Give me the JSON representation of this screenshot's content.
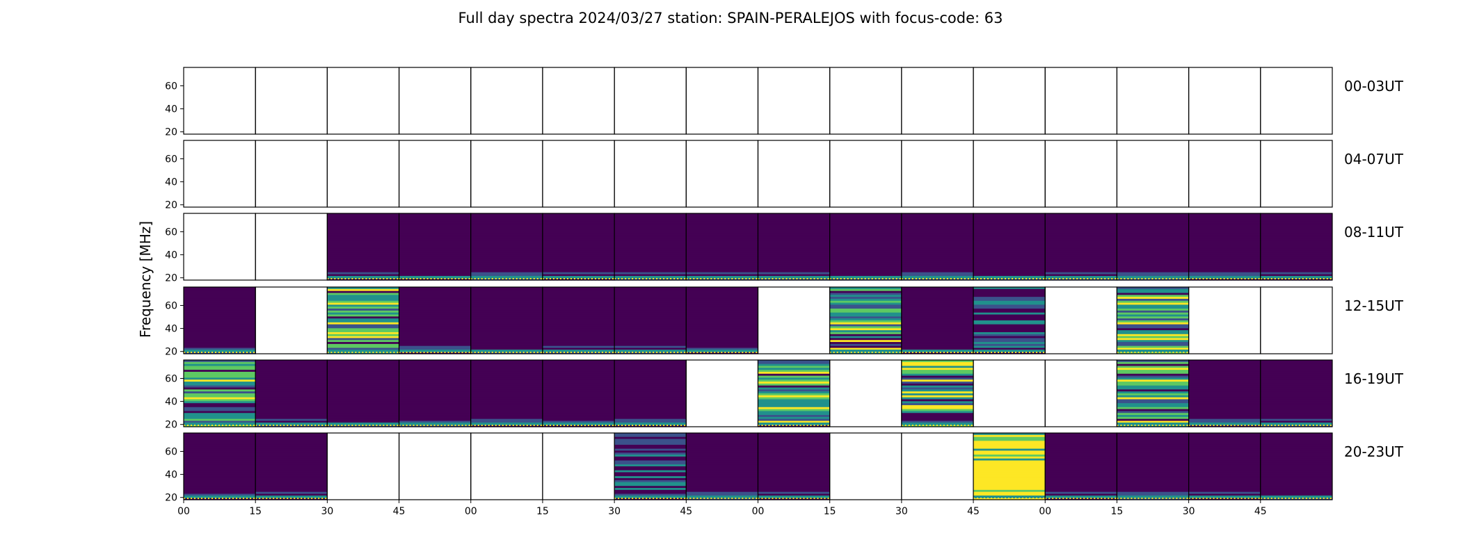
{
  "chart_data": {
    "type": "heatmap",
    "title": "Full day spectra 2024/03/27 station: SPAIN-PERALEJOS with focus-code: 63",
    "ylabel": "Frequency [MHz]",
    "xlabel": "",
    "yticks": [
      "20",
      "40",
      "60"
    ],
    "ylim": [
      18,
      76
    ],
    "xticks": [
      "00",
      "15",
      "30",
      "45",
      "00",
      "15",
      "30",
      "45",
      "00",
      "15",
      "30",
      "45",
      "00",
      "15",
      "30",
      "45"
    ],
    "rows": [
      {
        "label": "00-03UT",
        "panels": [
          "empty",
          "empty",
          "empty",
          "empty",
          "empty",
          "empty",
          "empty",
          "empty",
          "empty",
          "empty",
          "empty",
          "empty",
          "empty",
          "empty",
          "empty",
          "empty"
        ]
      },
      {
        "label": "04-07UT",
        "panels": [
          "empty",
          "empty",
          "empty",
          "empty",
          "empty",
          "empty",
          "empty",
          "empty",
          "empty",
          "empty",
          "empty",
          "empty",
          "empty",
          "empty",
          "empty",
          "empty"
        ]
      },
      {
        "label": "08-11UT",
        "panels": [
          "empty",
          "empty",
          "quiet",
          "quiet",
          "quiet",
          "quiet",
          "quiet",
          "quiet",
          "quiet",
          "quiet",
          "quiet",
          "quiet",
          "quiet",
          "quiet",
          "quiet",
          "quiet"
        ]
      },
      {
        "label": "12-15UT",
        "panels": [
          "quiet",
          "empty",
          "burst",
          "quiet",
          "quiet",
          "quiet",
          "quiet",
          "quiet",
          "empty",
          "burst",
          "quiet",
          "mid",
          "empty",
          "burst",
          "empty",
          "empty"
        ]
      },
      {
        "label": "16-19UT",
        "panels": [
          "burst",
          "quiet",
          "quiet",
          "quiet",
          "quiet",
          "quiet",
          "quiet",
          "empty",
          "burst",
          "empty",
          "burst",
          "empty",
          "empty",
          "burst",
          "quiet",
          "quiet"
        ]
      },
      {
        "label": "20-23UT",
        "panels": [
          "quiet",
          "quiet",
          "empty",
          "empty",
          "empty",
          "empty",
          "mid",
          "quiet",
          "quiet",
          "empty",
          "empty",
          "strong",
          "quiet",
          "quiet",
          "quiet",
          "quiet"
        ]
      }
    ],
    "colormap": [
      "#440154",
      "#3b528b",
      "#21918c",
      "#5ec962",
      "#fde725"
    ],
    "grid": false
  }
}
